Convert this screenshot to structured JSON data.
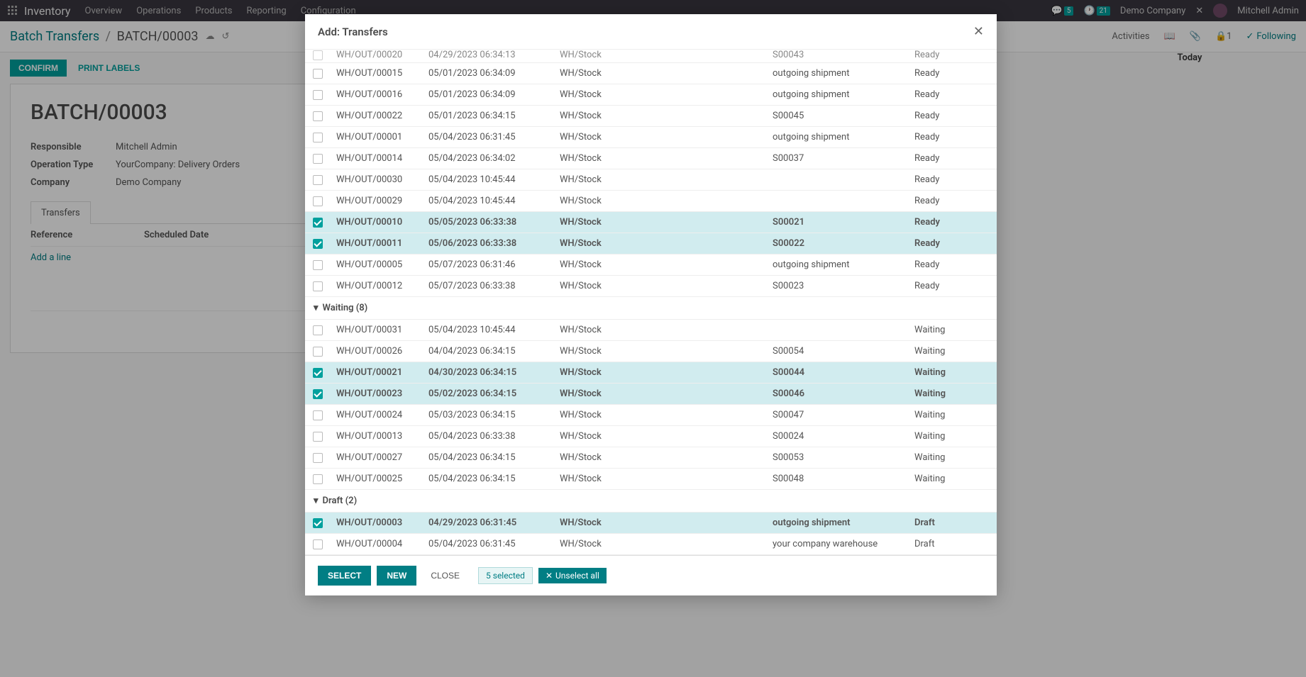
{
  "topnav": {
    "brand": "Inventory",
    "menu": [
      "Overview",
      "Operations",
      "Products",
      "Reporting",
      "Configuration"
    ],
    "chat_badge": "5",
    "activity_badge": "21",
    "company": "Demo Company",
    "user": "Mitchell Admin"
  },
  "breadcrumb": {
    "root": "Batch Transfers",
    "current": "BATCH/00003",
    "activities": "Activities",
    "follower_count": "1",
    "following": "Following"
  },
  "actions": {
    "confirm": "CONFIRM",
    "print_labels": "PRINT LABELS"
  },
  "form": {
    "title": "BATCH/00003",
    "fields": {
      "responsible_label": "Responsible",
      "responsible_value": "Mitchell Admin",
      "optype_label": "Operation Type",
      "optype_value": "YourCompany: Delivery Orders",
      "company_label": "Company",
      "company_value": "Demo Company"
    },
    "tab": "Transfers",
    "col_reference": "Reference",
    "col_scheduled": "Scheduled Date",
    "add_line": "Add a line"
  },
  "side": {
    "today": "Today"
  },
  "modal": {
    "title": "Add: Transfers",
    "rows_cutoff": {
      "ref": "WH/OUT/00020",
      "date": "04/29/2023 06:34:13",
      "loc": "WH/Stock",
      "src": "S00043",
      "status": "Ready"
    },
    "rows_ready": [
      {
        "ref": "WH/OUT/00015",
        "date": "05/01/2023 06:34:09",
        "loc": "WH/Stock",
        "src": "outgoing shipment",
        "status": "Ready",
        "sel": false
      },
      {
        "ref": "WH/OUT/00016",
        "date": "05/01/2023 06:34:09",
        "loc": "WH/Stock",
        "src": "outgoing shipment",
        "status": "Ready",
        "sel": false
      },
      {
        "ref": "WH/OUT/00022",
        "date": "05/01/2023 06:34:15",
        "loc": "WH/Stock",
        "src": "S00045",
        "status": "Ready",
        "sel": false
      },
      {
        "ref": "WH/OUT/00001",
        "date": "05/04/2023 06:31:45",
        "loc": "WH/Stock",
        "src": "outgoing shipment",
        "status": "Ready",
        "sel": false
      },
      {
        "ref": "WH/OUT/00014",
        "date": "05/04/2023 06:34:02",
        "loc": "WH/Stock",
        "src": "S00037",
        "status": "Ready",
        "sel": false
      },
      {
        "ref": "WH/OUT/00030",
        "date": "05/04/2023 10:45:44",
        "loc": "WH/Stock",
        "src": "",
        "status": "Ready",
        "sel": false
      },
      {
        "ref": "WH/OUT/00029",
        "date": "05/04/2023 10:45:44",
        "loc": "WH/Stock",
        "src": "",
        "status": "Ready",
        "sel": false
      },
      {
        "ref": "WH/OUT/00010",
        "date": "05/05/2023 06:33:38",
        "loc": "WH/Stock",
        "src": "S00021",
        "status": "Ready",
        "sel": true
      },
      {
        "ref": "WH/OUT/00011",
        "date": "05/06/2023 06:33:38",
        "loc": "WH/Stock",
        "src": "S00022",
        "status": "Ready",
        "sel": true
      },
      {
        "ref": "WH/OUT/00005",
        "date": "05/07/2023 06:31:46",
        "loc": "WH/Stock",
        "src": "outgoing shipment",
        "status": "Ready",
        "sel": false
      },
      {
        "ref": "WH/OUT/00012",
        "date": "05/07/2023 06:33:38",
        "loc": "WH/Stock",
        "src": "S00023",
        "status": "Ready",
        "sel": false
      }
    ],
    "group_waiting": "Waiting (8)",
    "rows_waiting": [
      {
        "ref": "WH/OUT/00031",
        "date": "05/04/2023 10:45:44",
        "loc": "WH/Stock",
        "src": "",
        "status": "Waiting",
        "sel": false
      },
      {
        "ref": "WH/OUT/00026",
        "date": "04/04/2023 06:34:15",
        "loc": "WH/Stock",
        "src": "S00054",
        "status": "Waiting",
        "sel": false
      },
      {
        "ref": "WH/OUT/00021",
        "date": "04/30/2023 06:34:15",
        "loc": "WH/Stock",
        "src": "S00044",
        "status": "Waiting",
        "sel": true
      },
      {
        "ref": "WH/OUT/00023",
        "date": "05/02/2023 06:34:15",
        "loc": "WH/Stock",
        "src": "S00046",
        "status": "Waiting",
        "sel": true
      },
      {
        "ref": "WH/OUT/00024",
        "date": "05/03/2023 06:34:15",
        "loc": "WH/Stock",
        "src": "S00047",
        "status": "Waiting",
        "sel": false
      },
      {
        "ref": "WH/OUT/00013",
        "date": "05/04/2023 06:33:38",
        "loc": "WH/Stock",
        "src": "S00024",
        "status": "Waiting",
        "sel": false
      },
      {
        "ref": "WH/OUT/00027",
        "date": "05/04/2023 06:34:15",
        "loc": "WH/Stock",
        "src": "S00053",
        "status": "Waiting",
        "sel": false
      },
      {
        "ref": "WH/OUT/00025",
        "date": "05/04/2023 06:34:15",
        "loc": "WH/Stock",
        "src": "S00048",
        "status": "Waiting",
        "sel": false
      }
    ],
    "group_draft": "Draft (2)",
    "rows_draft": [
      {
        "ref": "WH/OUT/00003",
        "date": "04/29/2023 06:31:45",
        "loc": "WH/Stock",
        "src": "outgoing shipment",
        "status": "Draft",
        "sel": true
      },
      {
        "ref": "WH/OUT/00004",
        "date": "05/04/2023 06:31:45",
        "loc": "WH/Stock",
        "src": "your company warehouse",
        "status": "Draft",
        "sel": false
      }
    ],
    "footer": {
      "select": "SELECT",
      "new": "NEW",
      "close": "CLOSE",
      "selected": "5 selected",
      "unselect": "Unselect all"
    }
  }
}
